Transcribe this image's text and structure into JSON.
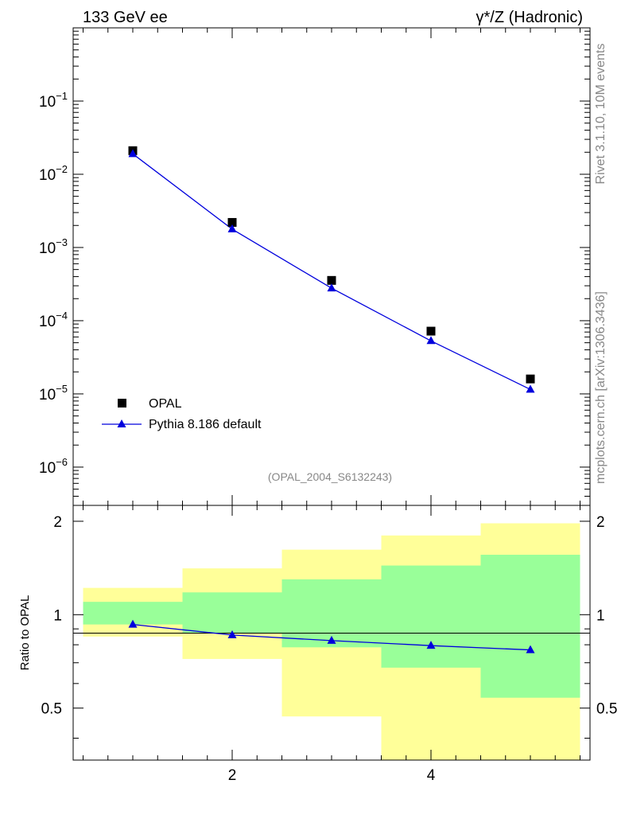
{
  "header": {
    "left_title": "133 GeV ee",
    "right_title": "γ*/Z (Hadronic)"
  },
  "side_labels": {
    "rivet": "Rivet 3.1.10,  10M events",
    "source": "mcplots.cern.ch [arXiv:1306.3436]"
  },
  "analysis_id": "(OPAL_2004_S6132243)",
  "colors": {
    "data_marker": "#000000",
    "mc_line": "#0000dd",
    "band_inner": "#99ff99",
    "band_outer": "#ffff99"
  },
  "chart_data": [
    {
      "type": "scatter",
      "panel": "main",
      "yscale": "log",
      "xlim": [
        0.4,
        5.6
      ],
      "ylim": [
        3e-07,
        1.0
      ],
      "y_tick_labels": [
        "10^-6",
        "10^-5",
        "10^-4",
        "10^-3",
        "10^-2",
        "10^-1"
      ],
      "legend_position": "lower-left",
      "series": [
        {
          "name": "OPAL",
          "marker": "square",
          "x": [
            1,
            2,
            3,
            4,
            5
          ],
          "y": [
            0.021,
            0.0022,
            0.000355,
            7.2e-05,
            1.6e-05
          ]
        },
        {
          "name": "Pythia 8.186 default",
          "marker": "triangle",
          "line": true,
          "x": [
            1,
            2,
            3,
            4,
            5
          ],
          "y": [
            0.019,
            0.00178,
            0.000278,
            5.3e-05,
            1.15e-05
          ]
        }
      ]
    },
    {
      "type": "line",
      "panel": "ratio",
      "ylabel": "Ratio to OPAL",
      "xlim": [
        0.4,
        5.6
      ],
      "ylim": [
        0.34,
        2.25
      ],
      "x_tick_labels": [
        "2",
        "4"
      ],
      "y_tick_labels": [
        "0.5",
        "1",
        "2"
      ],
      "bins": [
        [
          0.5,
          1.5
        ],
        [
          1.5,
          2.5
        ],
        [
          2.5,
          3.5
        ],
        [
          3.5,
          4.5
        ],
        [
          4.5,
          5.5
        ]
      ],
      "band_inner": {
        "low": [
          0.93,
          0.87,
          0.785,
          0.675,
          0.54
        ],
        "high": [
          1.1,
          1.18,
          1.3,
          1.44,
          1.56
        ]
      },
      "band_outer": {
        "low": [
          0.85,
          0.72,
          0.47,
          0.34,
          0.34
        ],
        "high": [
          1.22,
          1.41,
          1.62,
          1.8,
          1.97
        ]
      },
      "series": [
        {
          "name": "Pythia 8.186 default",
          "x": [
            1,
            2,
            3,
            4,
            5
          ],
          "y": [
            0.93,
            0.86,
            0.825,
            0.795,
            0.77
          ]
        }
      ]
    }
  ]
}
